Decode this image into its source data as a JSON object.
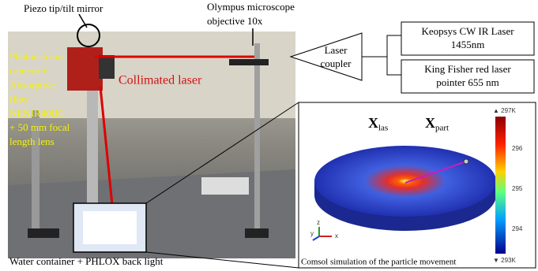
{
  "labels": {
    "piezo": "Piezo tip/tilt mirror",
    "objective": [
      "Olympus microscope",
      "objective 10x"
    ],
    "collimated": "Collimated laser",
    "camera": [
      "Photon-focus",
      "camera +",
      "Absorptive",
      "filter",
      "NENIR40BC",
      "+ 50 mm focal",
      "length lens"
    ],
    "water": "Water container + PHLOX back light",
    "coupler": [
      "Laser",
      "coupler"
    ],
    "keopsys": [
      "Keopsys CW IR Laser",
      "1455nm"
    ],
    "kingfisher": [
      "King Fisher red laser",
      "pointer 655 nm"
    ]
  },
  "inset": {
    "caption": "Comsol simulation of the particle movement",
    "x_las": "X",
    "x_las_sub": "las",
    "x_part": "X",
    "x_part_sub": "part",
    "colorbar_max": "▲ 297K",
    "colorbar_min": "▼ 293K",
    "colorbar_ticks": [
      "296",
      "295",
      "294"
    ],
    "axes": [
      "y",
      "z",
      "x"
    ]
  }
}
